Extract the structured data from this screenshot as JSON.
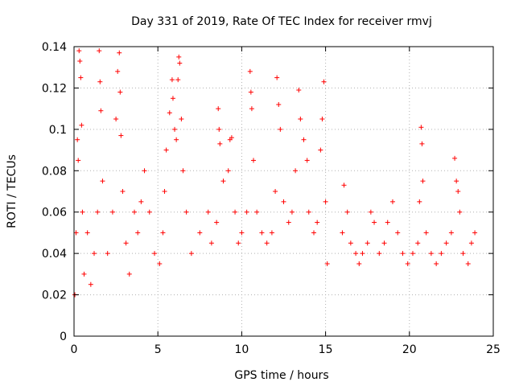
{
  "chart_data": {
    "type": "scatter",
    "title": "Day 331 of 2019, Rate Of TEC Index for receiver rmvj",
    "xlabel": "GPS time / hours",
    "ylabel": "ROTI / TECUs",
    "xlim": [
      0,
      25
    ],
    "ylim": [
      0,
      0.14
    ],
    "xticks": [
      0,
      5,
      10,
      15,
      20,
      25
    ],
    "xtick_labels": [
      "0",
      "5",
      "10",
      "15",
      "20",
      "25"
    ],
    "yticks": [
      0,
      0.02,
      0.04,
      0.06,
      0.08,
      0.1,
      0.12,
      0.14
    ],
    "ytick_labels": [
      "0",
      "0.02",
      "0.04",
      "0.06",
      "0.08",
      "0.1",
      "0.12",
      "0.14"
    ],
    "grid": true,
    "marker": "+",
    "color": "#ff0000",
    "data_gaps_hours": [
      [
        15.2,
        15.95
      ]
    ],
    "series": [
      {
        "name": "ROTI",
        "points": [
          [
            0.05,
            0.02
          ],
          [
            0.12,
            0.05
          ],
          [
            0.2,
            0.095
          ],
          [
            0.25,
            0.085
          ],
          [
            0.3,
            0.138
          ],
          [
            0.35,
            0.133
          ],
          [
            0.4,
            0.125
          ],
          [
            0.45,
            0.102
          ],
          [
            0.5,
            0.06
          ],
          [
            0.6,
            0.03
          ],
          [
            0.8,
            0.05
          ],
          [
            1.0,
            0.025
          ],
          [
            1.2,
            0.04
          ],
          [
            1.4,
            0.06
          ],
          [
            1.5,
            0.138
          ],
          [
            1.55,
            0.123
          ],
          [
            1.6,
            0.109
          ],
          [
            1.7,
            0.075
          ],
          [
            2.0,
            0.04
          ],
          [
            2.3,
            0.06
          ],
          [
            2.5,
            0.105
          ],
          [
            2.6,
            0.128
          ],
          [
            2.7,
            0.137
          ],
          [
            2.75,
            0.118
          ],
          [
            2.8,
            0.097
          ],
          [
            2.9,
            0.07
          ],
          [
            3.1,
            0.045
          ],
          [
            3.3,
            0.03
          ],
          [
            3.6,
            0.06
          ],
          [
            3.8,
            0.05
          ],
          [
            4.0,
            0.065
          ],
          [
            4.2,
            0.08
          ],
          [
            4.5,
            0.06
          ],
          [
            4.8,
            0.04
          ],
          [
            5.1,
            0.035
          ],
          [
            5.3,
            0.05
          ],
          [
            5.4,
            0.07
          ],
          [
            5.5,
            0.09
          ],
          [
            5.7,
            0.108
          ],
          [
            5.85,
            0.124
          ],
          [
            5.9,
            0.115
          ],
          [
            6.0,
            0.1
          ],
          [
            6.1,
            0.095
          ],
          [
            6.2,
            0.124
          ],
          [
            6.25,
            0.135
          ],
          [
            6.3,
            0.132
          ],
          [
            6.4,
            0.105
          ],
          [
            6.5,
            0.08
          ],
          [
            6.7,
            0.06
          ],
          [
            7.0,
            0.04
          ],
          [
            7.5,
            0.05
          ],
          [
            8.0,
            0.06
          ],
          [
            8.2,
            0.045
          ],
          [
            8.5,
            0.055
          ],
          [
            8.6,
            0.11
          ],
          [
            8.65,
            0.1
          ],
          [
            8.7,
            0.093
          ],
          [
            8.9,
            0.075
          ],
          [
            9.2,
            0.08
          ],
          [
            9.3,
            0.095
          ],
          [
            9.4,
            0.096
          ],
          [
            9.6,
            0.06
          ],
          [
            9.8,
            0.045
          ],
          [
            10.0,
            0.05
          ],
          [
            10.3,
            0.06
          ],
          [
            10.5,
            0.128
          ],
          [
            10.55,
            0.118
          ],
          [
            10.6,
            0.11
          ],
          [
            10.7,
            0.085
          ],
          [
            10.9,
            0.06
          ],
          [
            11.2,
            0.05
          ],
          [
            11.5,
            0.045
          ],
          [
            11.8,
            0.05
          ],
          [
            12.0,
            0.07
          ],
          [
            12.1,
            0.125
          ],
          [
            12.2,
            0.112
          ],
          [
            12.3,
            0.1
          ],
          [
            12.5,
            0.065
          ],
          [
            12.8,
            0.055
          ],
          [
            13.0,
            0.06
          ],
          [
            13.2,
            0.08
          ],
          [
            13.4,
            0.119
          ],
          [
            13.5,
            0.105
          ],
          [
            13.7,
            0.095
          ],
          [
            13.9,
            0.085
          ],
          [
            14.0,
            0.06
          ],
          [
            14.3,
            0.05
          ],
          [
            14.5,
            0.055
          ],
          [
            14.7,
            0.09
          ],
          [
            14.8,
            0.105
          ],
          [
            14.9,
            0.123
          ],
          [
            15.0,
            0.065
          ],
          [
            15.1,
            0.035
          ],
          [
            16.0,
            0.05
          ],
          [
            16.1,
            0.073
          ],
          [
            16.3,
            0.06
          ],
          [
            16.5,
            0.045
          ],
          [
            16.8,
            0.04
          ],
          [
            17.0,
            0.035
          ],
          [
            17.2,
            0.04
          ],
          [
            17.5,
            0.045
          ],
          [
            17.7,
            0.06
          ],
          [
            17.9,
            0.055
          ],
          [
            18.2,
            0.04
          ],
          [
            18.5,
            0.045
          ],
          [
            18.7,
            0.055
          ],
          [
            19.0,
            0.065
          ],
          [
            19.3,
            0.05
          ],
          [
            19.6,
            0.04
          ],
          [
            19.9,
            0.035
          ],
          [
            20.2,
            0.04
          ],
          [
            20.5,
            0.045
          ],
          [
            20.6,
            0.065
          ],
          [
            20.7,
            0.101
          ],
          [
            20.75,
            0.093
          ],
          [
            20.8,
            0.075
          ],
          [
            21.0,
            0.05
          ],
          [
            21.3,
            0.04
          ],
          [
            21.6,
            0.035
          ],
          [
            21.9,
            0.04
          ],
          [
            22.2,
            0.045
          ],
          [
            22.5,
            0.05
          ],
          [
            22.7,
            0.086
          ],
          [
            22.8,
            0.075
          ],
          [
            22.9,
            0.07
          ],
          [
            23.0,
            0.06
          ],
          [
            23.2,
            0.04
          ],
          [
            23.5,
            0.035
          ],
          [
            23.7,
            0.045
          ],
          [
            23.9,
            0.05
          ]
        ]
      }
    ]
  }
}
